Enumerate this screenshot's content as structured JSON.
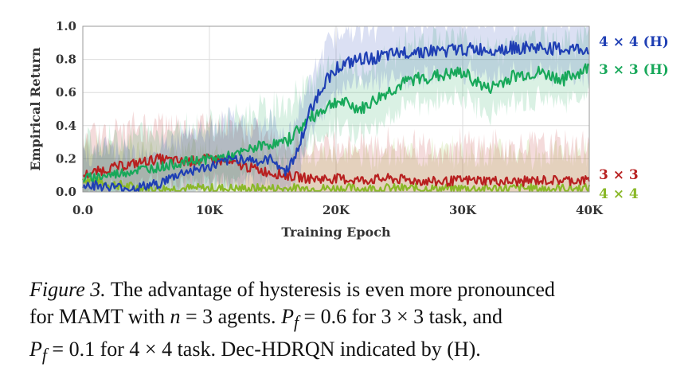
{
  "chart_data": {
    "type": "line",
    "xlabel": "Training Epoch",
    "ylabel": "Empirical Return",
    "xlim": [
      0,
      40000
    ],
    "ylim": [
      0,
      1.0
    ],
    "x_ticks": [
      "0.0",
      "10K",
      "20K",
      "30K",
      "40K"
    ],
    "y_ticks": [
      "0.0",
      "0.2",
      "0.4",
      "0.6",
      "0.8",
      "1.0"
    ],
    "grid": true,
    "legend": "inline labels at right end of lines",
    "series": [
      {
        "name": "4 × 4 (H)",
        "color": "#1f3fb4",
        "x": [
          0,
          2000,
          4000,
          6000,
          8000,
          10000,
          12000,
          13000,
          14000,
          15000,
          16000,
          17000,
          18000,
          19000,
          20000,
          22000,
          24000,
          26000,
          28000,
          30000,
          32000,
          34000,
          36000,
          38000,
          40000
        ],
        "values": [
          0.05,
          0.03,
          0.02,
          0.05,
          0.12,
          0.15,
          0.2,
          0.2,
          0.18,
          0.2,
          0.12,
          0.25,
          0.5,
          0.65,
          0.75,
          0.8,
          0.82,
          0.85,
          0.85,
          0.86,
          0.86,
          0.87,
          0.87,
          0.86,
          0.86
        ]
      },
      {
        "name": "3 × 3 (H)",
        "color": "#18a85a",
        "x": [
          0,
          2000,
          4000,
          6000,
          8000,
          10000,
          12000,
          14000,
          16000,
          18000,
          20000,
          22000,
          24000,
          26000,
          28000,
          30000,
          32000,
          34000,
          36000,
          38000,
          40000
        ],
        "values": [
          0.08,
          0.1,
          0.13,
          0.15,
          0.18,
          0.2,
          0.22,
          0.28,
          0.3,
          0.45,
          0.55,
          0.5,
          0.6,
          0.68,
          0.7,
          0.72,
          0.62,
          0.7,
          0.72,
          0.68,
          0.75
        ]
      },
      {
        "name": "3 × 3",
        "color": "#b82020",
        "x": [
          0,
          2000,
          4000,
          6000,
          8000,
          10000,
          12000,
          14000,
          16000,
          18000,
          20000,
          22000,
          24000,
          26000,
          28000,
          30000,
          32000,
          34000,
          36000,
          38000,
          40000
        ],
        "values": [
          0.1,
          0.14,
          0.17,
          0.2,
          0.18,
          0.2,
          0.17,
          0.13,
          0.1,
          0.08,
          0.08,
          0.07,
          0.08,
          0.07,
          0.06,
          0.07,
          0.07,
          0.06,
          0.07,
          0.07,
          0.07
        ]
      },
      {
        "name": "4 × 4",
        "color": "#8ab828",
        "x": [
          0,
          2000,
          4000,
          6000,
          8000,
          10000,
          12000,
          14000,
          16000,
          18000,
          20000,
          22000,
          24000,
          26000,
          28000,
          30000,
          32000,
          34000,
          36000,
          38000,
          40000
        ],
        "values": [
          0.08,
          0.05,
          0.03,
          0.02,
          0.02,
          0.02,
          0.02,
          0.02,
          0.02,
          0.02,
          0.02,
          0.02,
          0.02,
          0.02,
          0.02,
          0.02,
          0.02,
          0.02,
          0.02,
          0.02,
          0.02
        ]
      }
    ]
  },
  "caption": {
    "label": "Figure 3.",
    "line1_rest": " The advantage of hysteresis is even more pronounced",
    "line2_a": "for MAMT with ",
    "n_var": "n",
    "line2_b": " = 3 agents.  ",
    "pf_var": "P",
    "pf_sub": "f",
    "line2_c": " = 0.6 for 3 × 3 task, and",
    "line3_b": " = 0.1 for 4 × 4 task. Dec-HDRQN indicated by (H)."
  }
}
